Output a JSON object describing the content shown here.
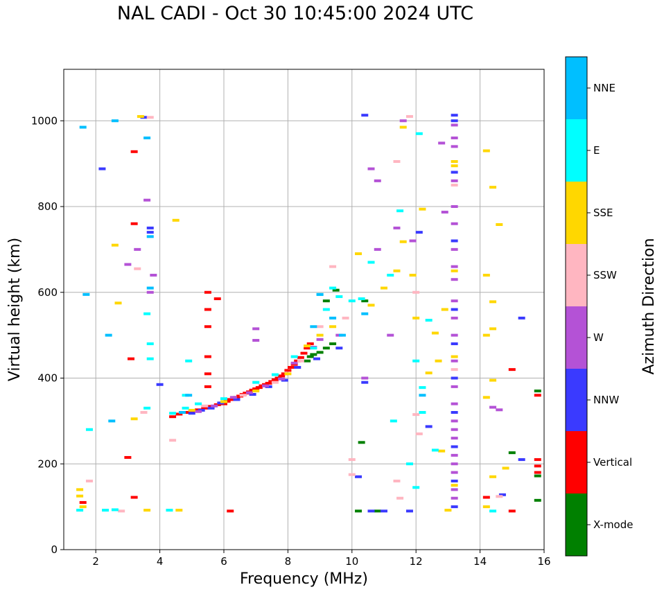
{
  "chart_data": {
    "type": "scatter",
    "title": "NAL CADI - Oct 30 10:45:00 2024 UTC",
    "xlabel": "Frequency (MHz)",
    "ylabel": "Virtual height (km)",
    "xlim": [
      1,
      16
    ],
    "ylim": [
      0,
      1120
    ],
    "xticks": [
      2,
      4,
      6,
      8,
      10,
      12,
      14,
      16
    ],
    "yticks": [
      0,
      200,
      400,
      600,
      800,
      1000
    ],
    "grid": true,
    "colorbar": {
      "title": "Azimuth Direction",
      "categories": [
        {
          "name": "X-mode",
          "color": "#008000"
        },
        {
          "name": "Vertical",
          "color": "#ff0000"
        },
        {
          "name": "NNW",
          "color": "#3a3aff"
        },
        {
          "name": "W",
          "color": "#b452d6"
        },
        {
          "name": "SSW",
          "color": "#ffb6c1"
        },
        {
          "name": "SSE",
          "color": "#ffd700"
        },
        {
          "name": "E",
          "color": "#00ffff"
        },
        {
          "name": "NNE",
          "color": "#00bfff"
        }
      ]
    },
    "series": [
      {
        "name": "Vertical",
        "points": [
          [
            4.4,
            310
          ],
          [
            4.6,
            316
          ],
          [
            4.8,
            320
          ],
          [
            5.0,
            322
          ],
          [
            5.2,
            326
          ],
          [
            5.4,
            330
          ],
          [
            5.6,
            334
          ],
          [
            5.8,
            338
          ],
          [
            6.0,
            340
          ],
          [
            6.1,
            346
          ],
          [
            6.2,
            350
          ],
          [
            6.3,
            352
          ],
          [
            6.4,
            355
          ],
          [
            6.5,
            358
          ],
          [
            6.6,
            362
          ],
          [
            6.7,
            365
          ],
          [
            6.8,
            368
          ],
          [
            6.9,
            372
          ],
          [
            7.0,
            375
          ],
          [
            7.1,
            378
          ],
          [
            7.2,
            382
          ],
          [
            7.3,
            385
          ],
          [
            7.4,
            388
          ],
          [
            7.5,
            392
          ],
          [
            7.6,
            396
          ],
          [
            7.7,
            400
          ],
          [
            7.8,
            405
          ],
          [
            7.9,
            410
          ],
          [
            8.0,
            418
          ],
          [
            8.1,
            425
          ],
          [
            8.2,
            432
          ],
          [
            8.3,
            440
          ],
          [
            8.4,
            448
          ],
          [
            8.5,
            458
          ],
          [
            8.6,
            470
          ],
          [
            8.7,
            480
          ],
          [
            5.5,
            380
          ],
          [
            5.5,
            410
          ],
          [
            5.5,
            450
          ],
          [
            5.5,
            520
          ],
          [
            5.5,
            560
          ],
          [
            5.5,
            600
          ],
          [
            5.8,
            585
          ],
          [
            6.2,
            90
          ],
          [
            14.2,
            122
          ],
          [
            15.0,
            90
          ],
          [
            15.0,
            420
          ],
          [
            15.8,
            360
          ],
          [
            15.8,
            210
          ],
          [
            15.8,
            195
          ],
          [
            15.8,
            180
          ],
          [
            3.2,
            928
          ],
          [
            3.2,
            760
          ],
          [
            3.1,
            445
          ],
          [
            3.0,
            215
          ],
          [
            3.2,
            122
          ],
          [
            1.6,
            110
          ]
        ]
      },
      {
        "name": "X-mode",
        "points": [
          [
            8.6,
            440
          ],
          [
            8.7,
            450
          ],
          [
            8.8,
            455
          ],
          [
            9.0,
            460
          ],
          [
            9.2,
            470
          ],
          [
            9.4,
            480
          ],
          [
            9.5,
            605
          ],
          [
            9.2,
            580
          ],
          [
            10.4,
            580
          ],
          [
            10.3,
            250
          ],
          [
            15.0,
            226
          ],
          [
            15.8,
            172
          ],
          [
            15.8,
            370
          ],
          [
            15.8,
            115
          ],
          [
            10.2,
            90
          ],
          [
            10.8,
            90
          ]
        ]
      },
      {
        "name": "NNW",
        "points": [
          [
            5.0,
            318
          ],
          [
            5.3,
            325
          ],
          [
            5.6,
            330
          ],
          [
            5.9,
            342
          ],
          [
            6.4,
            350
          ],
          [
            6.9,
            362
          ],
          [
            7.4,
            380
          ],
          [
            7.9,
            395
          ],
          [
            8.3,
            425
          ],
          [
            8.9,
            445
          ],
          [
            9.6,
            470
          ],
          [
            10.4,
            390
          ],
          [
            10.4,
            1013
          ],
          [
            10.2,
            170
          ],
          [
            10.6,
            90
          ],
          [
            11.0,
            90
          ],
          [
            11.8,
            90
          ],
          [
            12.1,
            740
          ],
          [
            12.4,
            287
          ],
          [
            13.2,
            1013
          ],
          [
            13.2,
            1000
          ],
          [
            13.2,
            880
          ],
          [
            13.2,
            720
          ],
          [
            13.2,
            560
          ],
          [
            13.2,
            480
          ],
          [
            13.2,
            400
          ],
          [
            13.2,
            320
          ],
          [
            13.2,
            240
          ],
          [
            13.2,
            160
          ],
          [
            13.2,
            100
          ],
          [
            14.7,
            128
          ],
          [
            15.3,
            540
          ],
          [
            15.3,
            210
          ],
          [
            3.7,
            750
          ],
          [
            3.7,
            740
          ],
          [
            2.2,
            888
          ],
          [
            4.0,
            385
          ],
          [
            3.5,
            1008
          ]
        ]
      },
      {
        "name": "W",
        "points": [
          [
            5.2,
            322
          ],
          [
            5.7,
            335
          ],
          [
            6.3,
            355
          ],
          [
            6.8,
            366
          ],
          [
            7.3,
            382
          ],
          [
            7.8,
            398
          ],
          [
            8.2,
            435
          ],
          [
            8.8,
            472
          ],
          [
            9.0,
            490
          ],
          [
            9.6,
            500
          ],
          [
            10.4,
            400
          ],
          [
            10.6,
            888
          ],
          [
            10.8,
            860
          ],
          [
            11.6,
            1000
          ],
          [
            12.8,
            948
          ],
          [
            12.9,
            787
          ],
          [
            13.2,
            990
          ],
          [
            13.2,
            960
          ],
          [
            13.2,
            940
          ],
          [
            13.2,
            860
          ],
          [
            13.2,
            800
          ],
          [
            13.2,
            760
          ],
          [
            13.2,
            700
          ],
          [
            13.2,
            660
          ],
          [
            13.2,
            630
          ],
          [
            13.2,
            580
          ],
          [
            13.2,
            540
          ],
          [
            13.2,
            500
          ],
          [
            13.2,
            440
          ],
          [
            13.2,
            380
          ],
          [
            13.2,
            340
          ],
          [
            13.2,
            300
          ],
          [
            13.2,
            280
          ],
          [
            13.2,
            260
          ],
          [
            13.2,
            220
          ],
          [
            13.2,
            200
          ],
          [
            13.2,
            180
          ],
          [
            13.2,
            140
          ],
          [
            13.2,
            120
          ],
          [
            14.4,
            332
          ],
          [
            14.6,
            326
          ],
          [
            10.8,
            700
          ],
          [
            11.2,
            500
          ],
          [
            11.4,
            750
          ],
          [
            11.9,
            720
          ],
          [
            3.0,
            665
          ],
          [
            3.6,
            815
          ],
          [
            3.7,
            600
          ],
          [
            3.8,
            640
          ],
          [
            3.3,
            700
          ],
          [
            7.0,
            515
          ],
          [
            7.0,
            488
          ]
        ]
      },
      {
        "name": "SSW",
        "points": [
          [
            5.4,
            335
          ],
          [
            6.6,
            360
          ],
          [
            7.6,
            390
          ],
          [
            8.4,
            440
          ],
          [
            9.0,
            520
          ],
          [
            9.4,
            660
          ],
          [
            9.8,
            540
          ],
          [
            10.0,
            210
          ],
          [
            10.0,
            175
          ],
          [
            11.4,
            905
          ],
          [
            11.8,
            1010
          ],
          [
            12.0,
            600
          ],
          [
            11.4,
            160
          ],
          [
            11.5,
            120
          ],
          [
            12.0,
            315
          ],
          [
            12.1,
            270
          ],
          [
            13.2,
            850
          ],
          [
            13.2,
            420
          ],
          [
            14.6,
            124
          ],
          [
            3.7,
            1008
          ],
          [
            3.3,
            655
          ],
          [
            3.5,
            320
          ],
          [
            1.8,
            160
          ],
          [
            4.4,
            255
          ],
          [
            2.8,
            90
          ]
        ]
      },
      {
        "name": "SSE",
        "points": [
          [
            5.0,
            325
          ],
          [
            6.0,
            345
          ],
          [
            7.0,
            370
          ],
          [
            8.0,
            410
          ],
          [
            8.6,
            475
          ],
          [
            9.0,
            500
          ],
          [
            9.4,
            520
          ],
          [
            10.2,
            690
          ],
          [
            10.6,
            570
          ],
          [
            11.0,
            610
          ],
          [
            11.4,
            650
          ],
          [
            11.6,
            985
          ],
          [
            11.6,
            718
          ],
          [
            11.9,
            640
          ],
          [
            12.0,
            540
          ],
          [
            12.2,
            794
          ],
          [
            12.4,
            412
          ],
          [
            12.6,
            505
          ],
          [
            12.7,
            440
          ],
          [
            12.8,
            230
          ],
          [
            12.9,
            560
          ],
          [
            13.0,
            92
          ],
          [
            13.2,
            905
          ],
          [
            13.2,
            895
          ],
          [
            13.2,
            650
          ],
          [
            13.2,
            450
          ],
          [
            13.2,
            150
          ],
          [
            14.2,
            930
          ],
          [
            14.2,
            640
          ],
          [
            14.2,
            500
          ],
          [
            14.2,
            355
          ],
          [
            14.2,
            100
          ],
          [
            14.4,
            845
          ],
          [
            14.4,
            578
          ],
          [
            14.4,
            515
          ],
          [
            14.4,
            395
          ],
          [
            14.4,
            170
          ],
          [
            14.6,
            758
          ],
          [
            14.8,
            190
          ],
          [
            2.6,
            710
          ],
          [
            2.7,
            575
          ],
          [
            3.2,
            305
          ],
          [
            3.4,
            1010
          ],
          [
            3.6,
            92
          ],
          [
            4.5,
            768
          ],
          [
            4.6,
            92
          ],
          [
            1.5,
            140
          ],
          [
            1.5,
            125
          ],
          [
            1.6,
            100
          ]
        ]
      },
      {
        "name": "E",
        "points": [
          [
            4.8,
            330
          ],
          [
            5.2,
            340
          ],
          [
            6.0,
            352
          ],
          [
            7.0,
            390
          ],
          [
            7.6,
            408
          ],
          [
            8.2,
            450
          ],
          [
            8.8,
            470
          ],
          [
            9.0,
            595
          ],
          [
            9.2,
            560
          ],
          [
            9.4,
            610
          ],
          [
            9.6,
            590
          ],
          [
            10.0,
            580
          ],
          [
            10.3,
            585
          ],
          [
            10.6,
            670
          ],
          [
            11.2,
            640
          ],
          [
            11.3,
            300
          ],
          [
            11.5,
            790
          ],
          [
            11.8,
            200
          ],
          [
            12.0,
            440
          ],
          [
            12.0,
            145
          ],
          [
            12.1,
            970
          ],
          [
            12.2,
            378
          ],
          [
            12.2,
            320
          ],
          [
            12.4,
            535
          ],
          [
            12.6,
            232
          ],
          [
            14.4,
            90
          ],
          [
            4.3,
            92
          ],
          [
            4.4,
            318
          ],
          [
            4.8,
            360
          ],
          [
            4.9,
            440
          ],
          [
            3.6,
            330
          ],
          [
            3.7,
            480
          ],
          [
            3.7,
            445
          ],
          [
            3.6,
            550
          ],
          [
            1.5,
            92
          ],
          [
            1.8,
            280
          ],
          [
            2.3,
            92
          ],
          [
            2.6,
            93
          ]
        ]
      },
      {
        "name": "NNE",
        "points": [
          [
            9.0,
            595
          ],
          [
            8.8,
            520
          ],
          [
            9.4,
            540
          ],
          [
            9.7,
            500
          ],
          [
            10.4,
            550
          ],
          [
            12.2,
            360
          ],
          [
            3.6,
            960
          ],
          [
            2.6,
            1000
          ],
          [
            3.7,
            730
          ],
          [
            3.7,
            610
          ],
          [
            4.9,
            360
          ],
          [
            4.7,
            320
          ],
          [
            2.4,
            500
          ],
          [
            2.5,
            300
          ],
          [
            1.7,
            595
          ],
          [
            1.6,
            985
          ]
        ]
      }
    ]
  }
}
